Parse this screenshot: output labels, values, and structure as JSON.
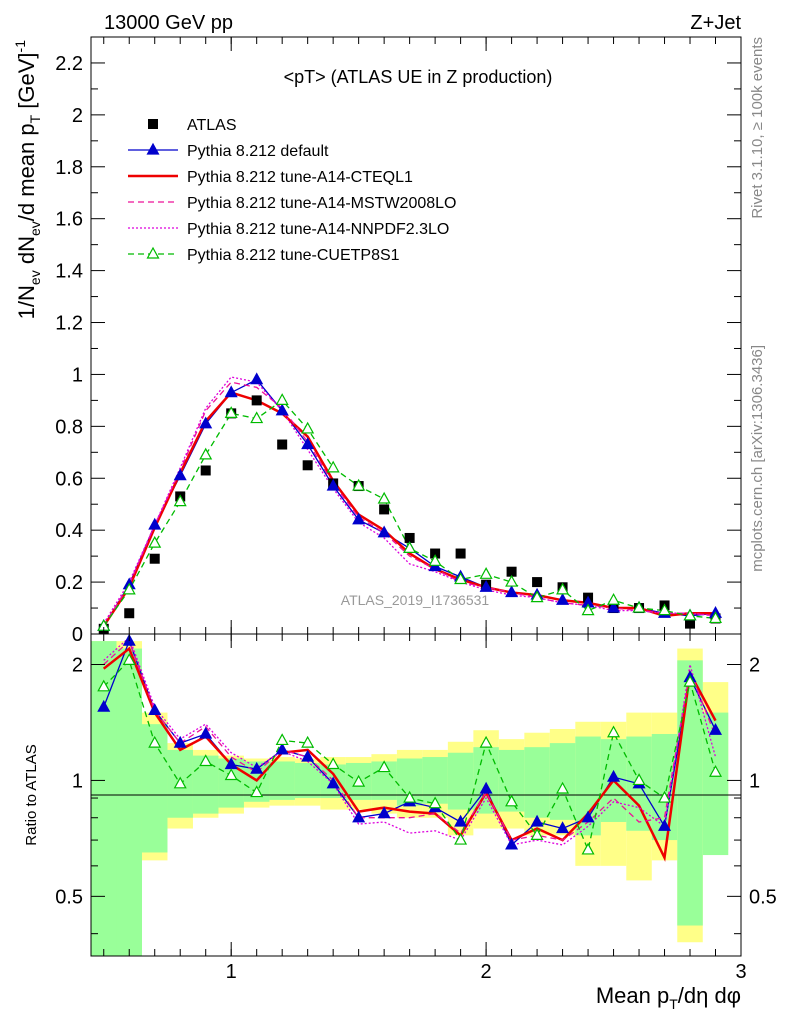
{
  "header": {
    "left": "13000 GeV pp",
    "right": "Z+Jet"
  },
  "side_labels": {
    "rivet": "Rivet 3.1.10, ≥ 100k events",
    "mcplots": "mcplots.cern.ch [arXiv:1306.3436]"
  },
  "watermark": "ATLAS_2019_I1736531",
  "chart_data": [
    {
      "type": "line",
      "panel": "main",
      "title": "<pT> (ATLAS UE in Z production)",
      "ylabel": "1/N_ev dN_ev/d mean p_T [GeV]^-1",
      "xlim": [
        0.45,
        3.0
      ],
      "ylim": [
        0,
        2.3
      ],
      "x_ticks": [
        1,
        2,
        3
      ],
      "y_ticks": [
        0,
        0.2,
        0.4,
        0.6,
        0.8,
        1,
        1.2,
        1.4,
        1.6,
        1.8,
        2,
        2.2
      ],
      "y_tick_labels": [
        "0",
        "0.2",
        "0.4",
        "0.6",
        "0.8",
        "1",
        "1.2",
        "1.4",
        "1.6",
        "1.8",
        "2",
        "2.2"
      ],
      "legend_position": "top-left",
      "x": [
        0.5,
        0.6,
        0.7,
        0.8,
        0.9,
        1.0,
        1.1,
        1.2,
        1.3,
        1.4,
        1.5,
        1.6,
        1.7,
        1.8,
        1.9,
        2.0,
        2.1,
        2.2,
        2.3,
        2.4,
        2.5,
        2.6,
        2.7,
        2.8,
        2.9
      ],
      "series": [
        {
          "name": "ATLAS",
          "color": "#000000",
          "style": "points",
          "values": [
            0.02,
            0.08,
            0.29,
            0.53,
            0.63,
            0.85,
            0.9,
            0.73,
            0.65,
            0.58,
            0.57,
            0.48,
            0.37,
            0.31,
            0.31,
            0.19,
            0.24,
            0.2,
            0.18,
            0.14,
            0.1,
            0.1,
            0.11,
            0.04,
            0.06
          ]
        },
        {
          "name": "Pythia 8.212 default",
          "color": "#0000cc",
          "style": "solid-triangle",
          "values": [
            0.03,
            0.19,
            0.42,
            0.61,
            0.81,
            0.93,
            0.98,
            0.86,
            0.73,
            0.57,
            0.44,
            0.39,
            0.33,
            0.26,
            0.22,
            0.18,
            0.16,
            0.15,
            0.13,
            0.12,
            0.1,
            0.1,
            0.08,
            0.07,
            0.08
          ]
        },
        {
          "name": "Pythia 8.212 tune-A14-CTEQL1",
          "color": "#ee0000",
          "style": "solid-thick",
          "values": [
            0.03,
            0.18,
            0.41,
            0.62,
            0.82,
            0.93,
            0.9,
            0.85,
            0.76,
            0.59,
            0.46,
            0.4,
            0.31,
            0.25,
            0.21,
            0.18,
            0.16,
            0.15,
            0.13,
            0.12,
            0.1,
            0.1,
            0.07,
            0.08,
            0.08
          ]
        },
        {
          "name": "Pythia 8.212 tune-A14-MSTW2008LO",
          "color": "#ee1199",
          "style": "dashed",
          "values": [
            0.03,
            0.19,
            0.42,
            0.63,
            0.86,
            0.97,
            0.95,
            0.87,
            0.74,
            0.58,
            0.45,
            0.39,
            0.3,
            0.25,
            0.2,
            0.18,
            0.16,
            0.14,
            0.12,
            0.11,
            0.1,
            0.09,
            0.08,
            0.08,
            0.07
          ]
        },
        {
          "name": "Pythia 8.212 tune-A14-NNPDF2.3LO",
          "color": "#dd00dd",
          "style": "dotted",
          "values": [
            0.04,
            0.2,
            0.42,
            0.64,
            0.87,
            0.99,
            0.97,
            0.86,
            0.71,
            0.56,
            0.43,
            0.37,
            0.27,
            0.24,
            0.2,
            0.17,
            0.15,
            0.14,
            0.12,
            0.11,
            0.09,
            0.09,
            0.08,
            0.08,
            0.07
          ]
        },
        {
          "name": "Pythia 8.212 tune-CUETP8S1",
          "color": "#00bb00",
          "style": "dashed-open-triangle",
          "values": [
            0.03,
            0.17,
            0.35,
            0.51,
            0.69,
            0.85,
            0.83,
            0.9,
            0.79,
            0.64,
            0.57,
            0.52,
            0.33,
            0.28,
            0.21,
            0.23,
            0.2,
            0.14,
            0.17,
            0.09,
            0.13,
            0.1,
            0.09,
            0.07,
            0.06
          ]
        }
      ]
    },
    {
      "type": "line",
      "panel": "ratio",
      "ylabel": "Ratio to ATLAS",
      "xlabel": "Mean p_T/dη dφ",
      "xlim": [
        0.45,
        3.0
      ],
      "ylim": [
        0.35,
        2.4
      ],
      "y_scale": "log",
      "y_ticks": [
        0.5,
        1,
        2
      ],
      "y_tick_labels": [
        "0.5",
        "1",
        "2"
      ],
      "x_ticks": [
        1,
        2,
        3
      ],
      "x_tick_labels": [
        "1",
        "2",
        "3"
      ],
      "x": [
        0.5,
        0.6,
        0.7,
        0.8,
        0.9,
        1.0,
        1.1,
        1.2,
        1.3,
        1.4,
        1.5,
        1.6,
        1.7,
        1.8,
        1.9,
        2.0,
        2.1,
        2.2,
        2.3,
        2.4,
        2.5,
        2.6,
        2.7,
        2.8,
        2.9
      ],
      "bands": {
        "bin_edges": [
          0.45,
          0.55,
          0.65,
          0.75,
          0.85,
          0.95,
          1.05,
          1.15,
          1.25,
          1.35,
          1.45,
          1.55,
          1.65,
          1.75,
          1.85,
          1.95,
          2.05,
          2.15,
          2.25,
          2.35,
          2.45,
          2.55,
          2.65,
          2.75,
          2.85,
          2.95
        ],
        "stat": {
          "color": "#99ff99",
          "low": [
            0.33,
            0.33,
            0.65,
            0.8,
            0.82,
            0.85,
            0.88,
            0.89,
            0.9,
            0.9,
            0.89,
            0.89,
            0.86,
            0.87,
            0.84,
            0.82,
            0.83,
            0.8,
            0.79,
            0.72,
            0.78,
            0.74,
            0.7,
            0.42,
            0.64
          ],
          "high": [
            2.3,
            2.2,
            1.4,
            1.2,
            1.16,
            1.14,
            1.12,
            1.12,
            1.11,
            1.1,
            1.11,
            1.12,
            1.14,
            1.15,
            1.18,
            1.22,
            1.2,
            1.22,
            1.25,
            1.3,
            1.28,
            1.3,
            1.32,
            2.05,
            1.5
          ]
        },
        "syst": {
          "color": "#ffff88",
          "low": [
            0.33,
            0.33,
            0.62,
            0.75,
            0.8,
            0.82,
            0.85,
            0.86,
            0.86,
            0.84,
            0.84,
            0.82,
            0.8,
            0.8,
            0.72,
            0.75,
            0.75,
            0.72,
            0.72,
            0.6,
            0.6,
            0.55,
            0.62,
            0.38,
            0.66
          ],
          "high": [
            2.3,
            2.3,
            1.5,
            1.25,
            1.2,
            1.16,
            1.14,
            1.15,
            1.14,
            1.15,
            1.15,
            1.17,
            1.2,
            1.2,
            1.26,
            1.35,
            1.28,
            1.33,
            1.36,
            1.42,
            1.42,
            1.5,
            1.5,
            2.2,
            1.8
          ]
        }
      },
      "series": [
        {
          "name": "Pythia 8.212 default",
          "color": "#0000cc",
          "style": "solid-triangle",
          "values": [
            1.55,
            2.3,
            1.52,
            1.25,
            1.32,
            1.1,
            1.07,
            1.2,
            1.15,
            0.98,
            0.8,
            0.82,
            0.88,
            0.85,
            0.78,
            0.95,
            0.68,
            0.78,
            0.75,
            0.8,
            1.02,
            0.98,
            0.76,
            1.85,
            1.35
          ]
        },
        {
          "name": "Pythia 8.212 tune-A14-CTEQL1",
          "color": "#ee0000",
          "style": "solid-thick",
          "values": [
            1.95,
            2.2,
            1.5,
            1.2,
            1.3,
            1.1,
            1.0,
            1.18,
            1.2,
            1.04,
            0.83,
            0.85,
            0.83,
            0.82,
            0.72,
            0.93,
            0.7,
            0.75,
            0.7,
            0.82,
            1.0,
            0.86,
            0.63,
            1.9,
            1.43
          ]
        },
        {
          "name": "Pythia 8.212 tune-A14-MSTW2008LO",
          "color": "#ee1199",
          "style": "dashed",
          "values": [
            2.0,
            2.3,
            1.52,
            1.25,
            1.38,
            1.15,
            1.05,
            1.2,
            1.15,
            1.0,
            0.8,
            0.8,
            0.8,
            0.82,
            0.73,
            0.93,
            0.7,
            0.72,
            0.7,
            0.78,
            0.9,
            0.78,
            0.8,
            1.93,
            1.3
          ]
        },
        {
          "name": "Pythia 8.212 tune-A14-NNPDF2.3LO",
          "color": "#dd00dd",
          "style": "dotted",
          "values": [
            2.05,
            2.35,
            1.55,
            1.28,
            1.4,
            1.18,
            1.08,
            1.19,
            1.12,
            0.98,
            0.77,
            0.78,
            0.73,
            0.74,
            0.7,
            0.9,
            0.68,
            0.7,
            0.68,
            0.76,
            0.88,
            0.85,
            0.76,
            2.0,
            1.15
          ]
        },
        {
          "name": "Pythia 8.212 tune-CUETP8S1",
          "color": "#00bb00",
          "style": "dashed-open-triangle",
          "values": [
            1.75,
            2.05,
            1.25,
            0.98,
            1.12,
            1.03,
            0.93,
            1.27,
            1.25,
            1.1,
            0.99,
            1.08,
            0.9,
            0.87,
            0.7,
            1.25,
            0.88,
            0.72,
            0.95,
            0.66,
            1.33,
            1.0,
            0.9,
            1.8,
            1.05
          ]
        }
      ]
    }
  ]
}
